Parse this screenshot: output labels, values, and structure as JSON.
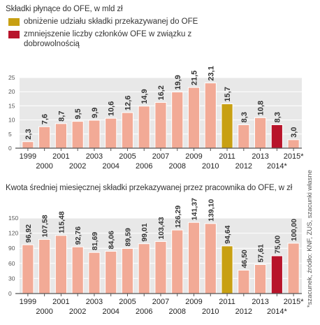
{
  "chart_data": [
    {
      "type": "bar",
      "title": "Składki płynące do OFE, w mld zł",
      "legend": [
        {
          "label": "obniżenie udziału składki przekazywanej do OFE",
          "color": "#c8a013"
        },
        {
          "label": "zmniejszenie liczby członków OFE w związku z dobrowolnością",
          "color": "#b8142b"
        }
      ],
      "categories": [
        "1999",
        "2000",
        "2001",
        "2002",
        "2003",
        "2004",
        "2005",
        "2006",
        "2007",
        "2008",
        "2009",
        "2010",
        "2011",
        "2012",
        "2013",
        "2014*",
        "2015*"
      ],
      "values": [
        2.3,
        7.6,
        8.7,
        9.5,
        9.9,
        10.6,
        12.6,
        14.9,
        16.2,
        19.9,
        21.5,
        23.1,
        15.7,
        8.3,
        10.8,
        8.3,
        3.0
      ],
      "value_labels": [
        "2,3",
        "7,6",
        "8,7",
        "9,5",
        "9,9",
        "10,6",
        "12,6",
        "14,9",
        "16,2",
        "19,9",
        "21,5",
        "23,1",
        "15,7",
        "8,3",
        "10,8",
        "8,3",
        "3,0"
      ],
      "bar_styles": [
        "n",
        "n",
        "n",
        "n",
        "n",
        "n",
        "n",
        "n",
        "n",
        "n",
        "n",
        "n",
        "gold",
        "n",
        "n",
        "red",
        "n"
      ],
      "yticks": [
        "0",
        "5",
        "10",
        "15",
        "20",
        "25"
      ],
      "ylim": [
        0,
        25
      ],
      "grid": true
    },
    {
      "type": "bar",
      "title": "Kwota średniej miesięcznej składki przekazywanej przez pracownika do OFE, w zł",
      "categories": [
        "1999",
        "2000",
        "2001",
        "2002",
        "2003",
        "2004",
        "2005",
        "2006",
        "2007",
        "2008",
        "2009",
        "2010",
        "2011",
        "2012",
        "2013",
        "2014*",
        "2015*"
      ],
      "values": [
        96.92,
        107.58,
        115.48,
        92.76,
        81.69,
        84.06,
        89.59,
        99.01,
        103.43,
        126.29,
        141.37,
        139.1,
        94.64,
        46.5,
        57.61,
        75.0,
        100.0
      ],
      "value_labels": [
        "96,92",
        "107,58",
        "115,48",
        "92,76",
        "81,69",
        "84,06",
        "89,59",
        "99,01",
        "103,43",
        "126,29",
        "141,37",
        "139,10",
        "94,64",
        "46,50",
        "57,61",
        "75,00",
        "100,00"
      ],
      "bar_styles": [
        "n",
        "n",
        "n",
        "n",
        "n",
        "n",
        "n",
        "n",
        "n",
        "n",
        "n",
        "n",
        "gold",
        "n",
        "n",
        "red",
        "n"
      ],
      "yticks": [
        "0",
        "30",
        "60",
        "90",
        "120",
        "150"
      ],
      "ylim": [
        0,
        150
      ],
      "grid": true
    }
  ],
  "footnote": "*szacunek, źródło: KNF, ZUS, szacunki własne",
  "colors": {
    "bar": "#f2aa96",
    "bar_gold": "#c8a013",
    "bar_red": "#b8142b",
    "plot_bg": "#e8e8e8",
    "grid": "#ffffff",
    "axis": "#555555"
  }
}
